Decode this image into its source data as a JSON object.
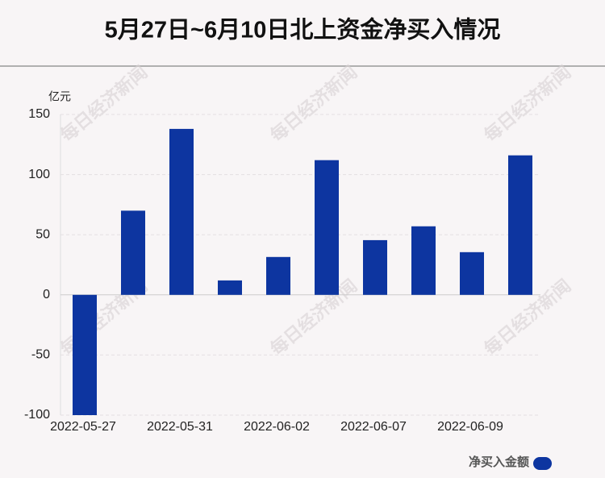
{
  "chart_data": {
    "type": "bar",
    "title": "5月27日~6月10日北上资金净买入情况",
    "y_unit": "亿元",
    "watermark": "每日经济新闻",
    "categories": [
      "2022-05-27",
      null,
      "2022-05-31",
      null,
      "2022-06-02",
      null,
      "2022-06-07",
      null,
      "2022-06-09",
      null
    ],
    "series": [
      {
        "name": "净买入金额",
        "color": "#0d35a0",
        "values": [
          -100,
          70,
          138,
          12,
          31.5,
          112,
          45.5,
          57,
          35.5,
          116
        ]
      }
    ],
    "ylim": [
      -100,
      150
    ],
    "yticks": [
      -100,
      -50,
      0,
      50,
      100,
      150
    ],
    "grid": true
  }
}
